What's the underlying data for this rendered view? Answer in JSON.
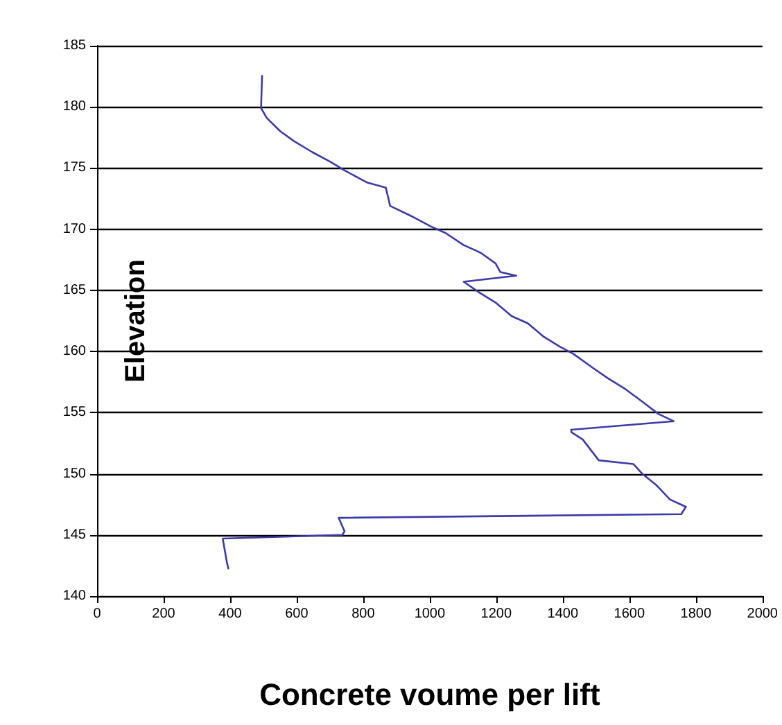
{
  "chart_data": {
    "type": "line",
    "xlabel": "Concrete voume per lift",
    "ylabel": "Elevation",
    "xlim": [
      0,
      2000
    ],
    "xticks": [
      0,
      200,
      400,
      600,
      800,
      1000,
      1200,
      1400,
      1600,
      1800,
      2000
    ],
    "ylim": [
      140,
      185
    ],
    "yticks": [
      140,
      145,
      150,
      155,
      160,
      165,
      170,
      175,
      180,
      185
    ],
    "grid": "y",
    "marker": "none",
    "line_style": "solid",
    "series": [
      {
        "color": "#3b3ba8",
        "x": [
          395,
          390,
          379,
          378,
          737,
          744,
          726,
          1756,
          1770,
          1722,
          1680,
          1639,
          1612,
          1508,
          1460,
          1426,
          1425,
          1733,
          1687,
          1639,
          1584,
          1536,
          1488,
          1432,
          1391,
          1343,
          1295,
          1246,
          1198,
          1150,
          1102,
          1260,
          1212,
          1198,
          1157,
          1143,
          1102,
          1047,
          1005,
          950,
          881,
          868,
          813,
          744,
          702,
          647,
          592,
          551,
          510,
          493,
          496
        ],
        "values": [
          142.2,
          142.8,
          144.5,
          144.7,
          145.0,
          145.3,
          146.4,
          146.7,
          147.3,
          147.9,
          149.1,
          150.0,
          150.8,
          151.1,
          152.8,
          153.4,
          153.6,
          154.3,
          154.9,
          155.9,
          157.0,
          157.8,
          158.7,
          159.8,
          160.4,
          161.2,
          162.3,
          162.9,
          164.0,
          164.8,
          165.7,
          166.2,
          166.5,
          167.2,
          168.0,
          168.2,
          168.7,
          169.7,
          170.2,
          171.0,
          171.9,
          173.4,
          173.8,
          174.8,
          175.5,
          176.3,
          177.2,
          178.0,
          179.1,
          179.9,
          182.6
        ]
      }
    ]
  }
}
